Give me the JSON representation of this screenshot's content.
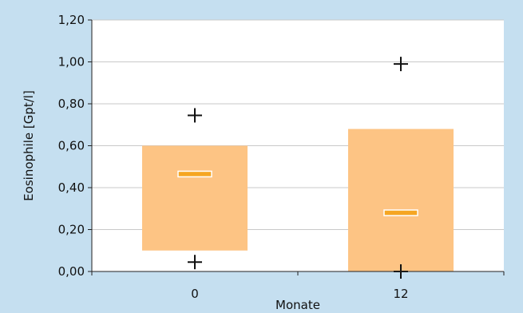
{
  "chart_data": {
    "type": "box",
    "title": "",
    "xlabel": "Monate",
    "ylabel": "Eosinophile [Gpt/l]",
    "ylim": [
      0,
      1.2
    ],
    "yticks": [
      "0,00",
      "0,20",
      "0,40",
      "0,60",
      "0,80",
      "1,00",
      "1,20"
    ],
    "yticks_values": [
      0,
      0.2,
      0.4,
      0.6,
      0.8,
      1.0,
      1.2
    ],
    "categories": [
      "0",
      "12"
    ],
    "grid": true,
    "legend": "none",
    "boxes": [
      {
        "category": "0",
        "q1": 0.1,
        "median": 0.465,
        "q3": 0.6,
        "min": 0.045,
        "max": 0.745
      },
      {
        "category": "12",
        "q1": 0.0,
        "median": 0.28,
        "q3": 0.68,
        "min": 0.0,
        "max": 0.99
      }
    ],
    "colors": {
      "background": "#c5dff0",
      "plot": "#ffffff",
      "box": "#fdc484",
      "median": "#f5a623",
      "grid": "#c9c9c9",
      "marker": "#111111"
    }
  }
}
